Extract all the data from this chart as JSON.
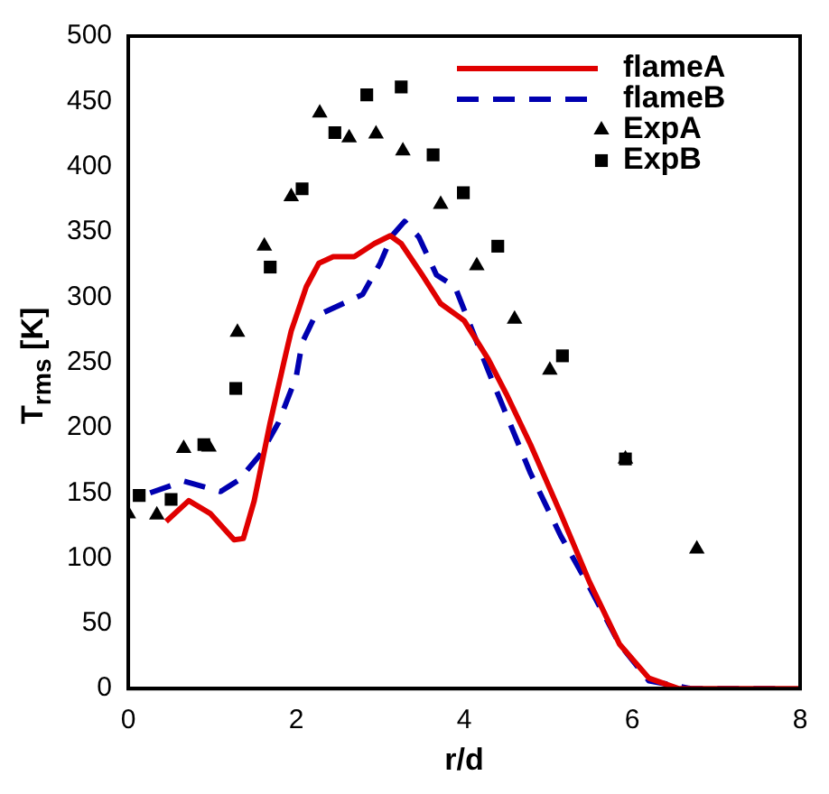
{
  "chart_data": {
    "type": "line",
    "xlabel": "r/d",
    "ylabel": "T$_{rms}$ [K]",
    "xlim": [
      0,
      8
    ],
    "xticks": [
      0,
      2,
      4,
      6,
      8
    ],
    "ylim": [
      0,
      500
    ],
    "yticks": [
      0,
      50,
      100,
      150,
      200,
      250,
      300,
      350,
      400,
      450,
      500
    ],
    "grid": false,
    "legend": "top right",
    "series": [
      {
        "name": "flameA",
        "type": "line",
        "line_style": "solid",
        "marker": "none",
        "color": "#e00000",
        "x": [
          0.45,
          0.72,
          0.98,
          1.26,
          1.37,
          1.5,
          1.69,
          1.86,
          1.94,
          2.12,
          2.27,
          2.44,
          2.69,
          2.93,
          3.12,
          3.25,
          3.5,
          3.72,
          4.0,
          4.29,
          4.5,
          4.79,
          5.15,
          5.49,
          5.85,
          6.2,
          6.55,
          7.0,
          7.5,
          8.0
        ],
        "values": [
          128,
          144,
          134,
          114,
          115,
          144,
          204,
          252,
          274,
          308,
          326,
          331,
          331,
          341,
          347,
          341,
          317,
          295,
          282,
          252,
          226,
          187,
          134,
          82,
          34,
          8,
          0,
          0,
          0,
          0
        ]
      },
      {
        "name": "flameB",
        "type": "line",
        "line_style": "dashed",
        "marker": "none",
        "color": "#0000b0",
        "x": [
          0.26,
          0.66,
          1.1,
          1.32,
          1.58,
          1.79,
          2.0,
          2.07,
          2.22,
          2.79,
          3.0,
          3.14,
          3.29,
          3.46,
          3.67,
          3.89,
          4.29,
          4.79,
          5.15,
          5.49,
          5.85,
          6.2,
          6.7,
          7.2,
          7.8
        ],
        "values": [
          150,
          159,
          151,
          160,
          180,
          204,
          239,
          265,
          285,
          302,
          326,
          347,
          358,
          346,
          317,
          308,
          243,
          165,
          117,
          78,
          34,
          6,
          0,
          0,
          0
        ]
      },
      {
        "name": "ExpA",
        "type": "scatter",
        "marker": "triangle",
        "color": "#000000",
        "x": [
          0,
          0.34,
          0.66,
          0.96,
          1.3,
          1.62,
          1.94,
          2.28,
          2.63,
          2.95,
          3.27,
          3.72,
          4.15,
          4.6,
          5.02,
          5.92,
          6.77
        ],
        "values": [
          134,
          133,
          184,
          185,
          273,
          339,
          377,
          441,
          422,
          425,
          412,
          371,
          324,
          283,
          244,
          176,
          107
        ]
      },
      {
        "name": "ExpB",
        "type": "scatter",
        "marker": "square",
        "color": "#000000",
        "x": [
          0.13,
          0.51,
          0.9,
          1.28,
          1.69,
          2.07,
          2.46,
          2.84,
          3.25,
          3.63,
          3.99,
          4.4,
          5.17,
          5.92
        ],
        "values": [
          148,
          145,
          187,
          230,
          323,
          383,
          426,
          455,
          461,
          409,
          380,
          339,
          255,
          176
        ]
      }
    ]
  }
}
